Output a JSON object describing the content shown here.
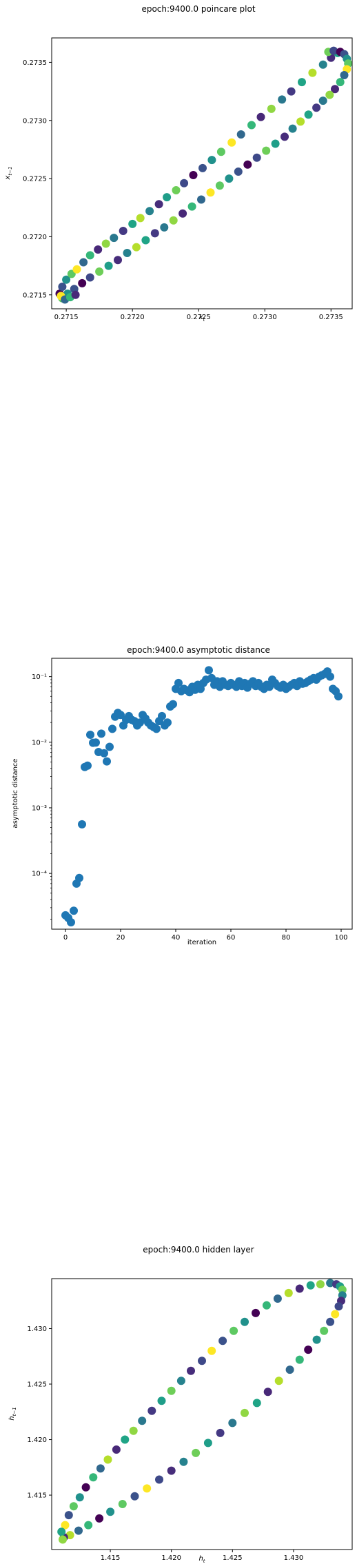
{
  "figure": {
    "background": "#ffffff"
  },
  "chart_data": [
    {
      "type": "scatter",
      "title": "epoch:9400.0 poincare plot",
      "xlabel": "x_t",
      "ylabel": "x_{t-1}",
      "xlim": [
        0.27139,
        0.27366
      ],
      "ylim": [
        0.27138,
        0.27371
      ],
      "xticks": [
        0.2715,
        0.272,
        0.2725,
        0.273,
        0.2735
      ],
      "xtick_labels": [
        "0.2715",
        "0.2720",
        "0.2725",
        "0.2730",
        "0.2735"
      ],
      "yticks": [
        0.2715,
        0.272,
        0.2725,
        0.273,
        0.2735
      ],
      "ytick_labels": [
        "0.2715",
        "0.2720",
        "0.2725",
        "0.2730",
        "0.2735"
      ],
      "grid": false,
      "colormap": "viridis",
      "marker_size": 6,
      "upper_branch": [
        [
          0.27145,
          0.27151
        ],
        [
          0.27147,
          0.27157
        ],
        [
          0.2715,
          0.27163
        ],
        [
          0.27154,
          0.27168
        ],
        [
          0.27158,
          0.27172
        ],
        [
          0.27163,
          0.27178
        ],
        [
          0.27168,
          0.27184
        ],
        [
          0.27174,
          0.27189
        ],
        [
          0.2718,
          0.27194
        ],
        [
          0.27186,
          0.27199
        ],
        [
          0.27193,
          0.27205
        ],
        [
          0.272,
          0.27211
        ],
        [
          0.27206,
          0.27216
        ],
        [
          0.27213,
          0.27222
        ],
        [
          0.2722,
          0.27228
        ],
        [
          0.27226,
          0.27234
        ],
        [
          0.27233,
          0.2724
        ],
        [
          0.27239,
          0.27246
        ],
        [
          0.27246,
          0.27253
        ],
        [
          0.27253,
          0.27259
        ],
        [
          0.2726,
          0.27266
        ],
        [
          0.27267,
          0.27273
        ],
        [
          0.27275,
          0.27281
        ],
        [
          0.27282,
          0.27288
        ],
        [
          0.2729,
          0.27296
        ],
        [
          0.27297,
          0.27303
        ],
        [
          0.27305,
          0.2731
        ],
        [
          0.27313,
          0.27318
        ],
        [
          0.2732,
          0.27325
        ],
        [
          0.27328,
          0.27333
        ],
        [
          0.27336,
          0.27341
        ],
        [
          0.27344,
          0.27348
        ],
        [
          0.2735,
          0.27354
        ],
        [
          0.27355,
          0.27358
        ]
      ],
      "tip_points": [
        [
          0.27348,
          0.27359
        ],
        [
          0.27352,
          0.2736
        ],
        [
          0.27357,
          0.27359
        ],
        [
          0.2736,
          0.27357
        ],
        [
          0.27362,
          0.27353
        ],
        [
          0.27363,
          0.27349
        ],
        [
          0.27362,
          0.27344
        ],
        [
          0.2736,
          0.27339
        ],
        [
          0.27357,
          0.27333
        ],
        [
          0.27353,
          0.27327
        ],
        [
          0.27349,
          0.27322
        ]
      ],
      "lower_branch": [
        [
          0.27344,
          0.27317
        ],
        [
          0.27339,
          0.27311
        ],
        [
          0.27333,
          0.27305
        ],
        [
          0.27327,
          0.27299
        ],
        [
          0.27321,
          0.27293
        ],
        [
          0.27315,
          0.27286
        ],
        [
          0.27308,
          0.2728
        ],
        [
          0.27301,
          0.27274
        ],
        [
          0.27294,
          0.27268
        ],
        [
          0.27287,
          0.27262
        ],
        [
          0.2728,
          0.27256
        ],
        [
          0.27273,
          0.2725
        ],
        [
          0.27266,
          0.27244
        ],
        [
          0.27259,
          0.27238
        ],
        [
          0.27252,
          0.27232
        ],
        [
          0.27245,
          0.27226
        ],
        [
          0.27238,
          0.2722
        ],
        [
          0.27231,
          0.27214
        ],
        [
          0.27224,
          0.27208
        ],
        [
          0.27217,
          0.27203
        ],
        [
          0.2721,
          0.27197
        ],
        [
          0.27203,
          0.27191
        ],
        [
          0.27196,
          0.27186
        ],
        [
          0.27189,
          0.2718
        ],
        [
          0.27182,
          0.27175
        ],
        [
          0.27175,
          0.2717
        ],
        [
          0.27168,
          0.27165
        ],
        [
          0.27162,
          0.2716
        ],
        [
          0.27156,
          0.27155
        ],
        [
          0.27151,
          0.27151
        ],
        [
          0.27147,
          0.27147
        ],
        [
          0.27146,
          0.27149
        ],
        [
          0.27149,
          0.27146
        ],
        [
          0.27153,
          0.27148
        ],
        [
          0.27157,
          0.2715
        ]
      ],
      "point_colors": [
        "#440154",
        "#3b528b",
        "#21918c",
        "#5ec962",
        "#fde725",
        "#31688e",
        "#35b779",
        "#482878",
        "#90d743",
        "#2a788e",
        "#443983",
        "#20a486",
        "#b5de2b",
        "#26828e",
        "#472d7b",
        "#1f9e89",
        "#6ece58",
        "#3e4989"
      ]
    },
    {
      "type": "scatter",
      "title": "epoch:9400.0 asymptotic distance",
      "xlabel": "iteration",
      "ylabel": "asymptotic distance",
      "xlim": [
        -5,
        104
      ],
      "ylim_log10": [
        -4.85,
        -0.72
      ],
      "yscale": "log",
      "xticks": [
        0,
        20,
        40,
        60,
        80,
        100
      ],
      "xtick_labels": [
        "0",
        "20",
        "40",
        "60",
        "80",
        "100"
      ],
      "yticks_log10": [
        -4,
        -3,
        -2,
        -1
      ],
      "ytick_labels": [
        "10⁻⁴",
        "10⁻³",
        "10⁻²",
        "10⁻¹"
      ],
      "grid": false,
      "color": "#1f77b4",
      "x": [
        0,
        1,
        2,
        3,
        4,
        5,
        6,
        7,
        8,
        9,
        10,
        11,
        12,
        13,
        14,
        15,
        16,
        17,
        18,
        19,
        20,
        21,
        22,
        23,
        24,
        25,
        26,
        27,
        28,
        29,
        30,
        31,
        32,
        33,
        34,
        35,
        36,
        37,
        38,
        39,
        40,
        41,
        42,
        43,
        44,
        45,
        46,
        47,
        48,
        49,
        50,
        51,
        52,
        53,
        54,
        55,
        56,
        57,
        58,
        59,
        60,
        61,
        62,
        63,
        64,
        65,
        66,
        67,
        68,
        69,
        70,
        71,
        72,
        73,
        74,
        75,
        76,
        77,
        78,
        79,
        80,
        81,
        82,
        83,
        84,
        85,
        86,
        87,
        88,
        89,
        90,
        91,
        92,
        93,
        94,
        95,
        96,
        97,
        98,
        99
      ],
      "y": [
        2.3e-05,
        2.1e-05,
        1.8e-05,
        2.7e-05,
        7e-05,
        8.5e-05,
        0.00056,
        0.0042,
        0.0044,
        0.013,
        0.0098,
        0.0099,
        0.0071,
        0.0135,
        0.0068,
        0.0051,
        0.0085,
        0.016,
        0.0245,
        0.028,
        0.026,
        0.018,
        0.022,
        0.025,
        0.022,
        0.021,
        0.018,
        0.02,
        0.026,
        0.023,
        0.02,
        0.018,
        0.017,
        0.016,
        0.021,
        0.025,
        0.018,
        0.02,
        0.035,
        0.038,
        0.065,
        0.08,
        0.06,
        0.065,
        0.062,
        0.058,
        0.07,
        0.063,
        0.075,
        0.065,
        0.08,
        0.09,
        0.125,
        0.095,
        0.075,
        0.085,
        0.07,
        0.085,
        0.075,
        0.072,
        0.08,
        0.075,
        0.07,
        0.085,
        0.072,
        0.08,
        0.068,
        0.078,
        0.085,
        0.072,
        0.08,
        0.07,
        0.065,
        0.075,
        0.07,
        0.09,
        0.08,
        0.072,
        0.068,
        0.075,
        0.065,
        0.07,
        0.075,
        0.08,
        0.072,
        0.085,
        0.078,
        0.08,
        0.085,
        0.09,
        0.095,
        0.09,
        0.1,
        0.105,
        0.11,
        0.12,
        0.1,
        0.065,
        0.06,
        0.05
      ]
    },
    {
      "type": "scatter",
      "title": "epoch:9400.0 hidden layer",
      "xlabel": "h_t",
      "ylabel": "h_{t-1}",
      "xlim": [
        1.4102,
        1.4348
      ],
      "ylim": [
        1.4101,
        1.4345
      ],
      "xticks": [
        1.415,
        1.42,
        1.425,
        1.43
      ],
      "xtick_labels": [
        "1.415",
        "1.420",
        "1.425",
        "1.430"
      ],
      "yticks": [
        1.415,
        1.42,
        1.425,
        1.43
      ],
      "ytick_labels": [
        "1.415",
        "1.420",
        "1.425",
        "1.430"
      ],
      "grid": false,
      "colormap": "viridis",
      "marker_size": 6,
      "upper_branch": [
        [
          1.4113,
          1.4123
        ],
        [
          1.4116,
          1.4132
        ],
        [
          1.412,
          1.414
        ],
        [
          1.4125,
          1.4148
        ],
        [
          1.413,
          1.4157
        ],
        [
          1.4136,
          1.4166
        ],
        [
          1.4142,
          1.4174
        ],
        [
          1.4148,
          1.4182
        ],
        [
          1.4155,
          1.4191
        ],
        [
          1.4162,
          1.42
        ],
        [
          1.4169,
          1.4208
        ],
        [
          1.4176,
          1.4217
        ],
        [
          1.4184,
          1.4226
        ],
        [
          1.4192,
          1.4235
        ],
        [
          1.42,
          1.4244
        ],
        [
          1.4208,
          1.4253
        ],
        [
          1.4216,
          1.4262
        ],
        [
          1.4225,
          1.4271
        ],
        [
          1.4233,
          1.428
        ],
        [
          1.4242,
          1.4289
        ],
        [
          1.4251,
          1.4298
        ],
        [
          1.426,
          1.4306
        ],
        [
          1.4269,
          1.4314
        ],
        [
          1.4278,
          1.4321
        ],
        [
          1.4287,
          1.4327
        ],
        [
          1.4296,
          1.4332
        ],
        [
          1.4305,
          1.4336
        ],
        [
          1.4314,
          1.4339
        ],
        [
          1.4322,
          1.434
        ],
        [
          1.433,
          1.4341
        ]
      ],
      "tip_points": [
        [
          1.4335,
          1.434
        ],
        [
          1.4338,
          1.4338
        ],
        [
          1.434,
          1.4335
        ],
        [
          1.434,
          1.433
        ],
        [
          1.4339,
          1.4325
        ],
        [
          1.4337,
          1.432
        ],
        [
          1.4334,
          1.4313
        ]
      ],
      "lower_branch": [
        [
          1.433,
          1.4306
        ],
        [
          1.4325,
          1.4298
        ],
        [
          1.4319,
          1.429
        ],
        [
          1.4312,
          1.4281
        ],
        [
          1.4305,
          1.4272
        ],
        [
          1.4297,
          1.4263
        ],
        [
          1.4288,
          1.4253
        ],
        [
          1.4279,
          1.4243
        ],
        [
          1.427,
          1.4233
        ],
        [
          1.426,
          1.4224
        ],
        [
          1.425,
          1.4215
        ],
        [
          1.424,
          1.4206
        ],
        [
          1.423,
          1.4197
        ],
        [
          1.422,
          1.4188
        ],
        [
          1.421,
          1.418
        ],
        [
          1.42,
          1.4172
        ],
        [
          1.419,
          1.4164
        ],
        [
          1.418,
          1.4156
        ],
        [
          1.417,
          1.4149
        ],
        [
          1.416,
          1.4142
        ],
        [
          1.415,
          1.4135
        ],
        [
          1.4141,
          1.4129
        ],
        [
          1.4132,
          1.4123
        ],
        [
          1.4124,
          1.4118
        ],
        [
          1.4117,
          1.4114
        ],
        [
          1.4112,
          1.4112
        ],
        [
          1.411,
          1.4117
        ],
        [
          1.4111,
          1.411
        ]
      ],
      "point_colors": [
        "#fde725",
        "#3b528b",
        "#5ec962",
        "#21918c",
        "#440154",
        "#35b779",
        "#31688e",
        "#b5de2b",
        "#482878",
        "#20a486",
        "#90d743",
        "#2a788e",
        "#443983",
        "#1f9e89",
        "#6ece58",
        "#26828e",
        "#472d7b",
        "#3e4989"
      ]
    }
  ]
}
